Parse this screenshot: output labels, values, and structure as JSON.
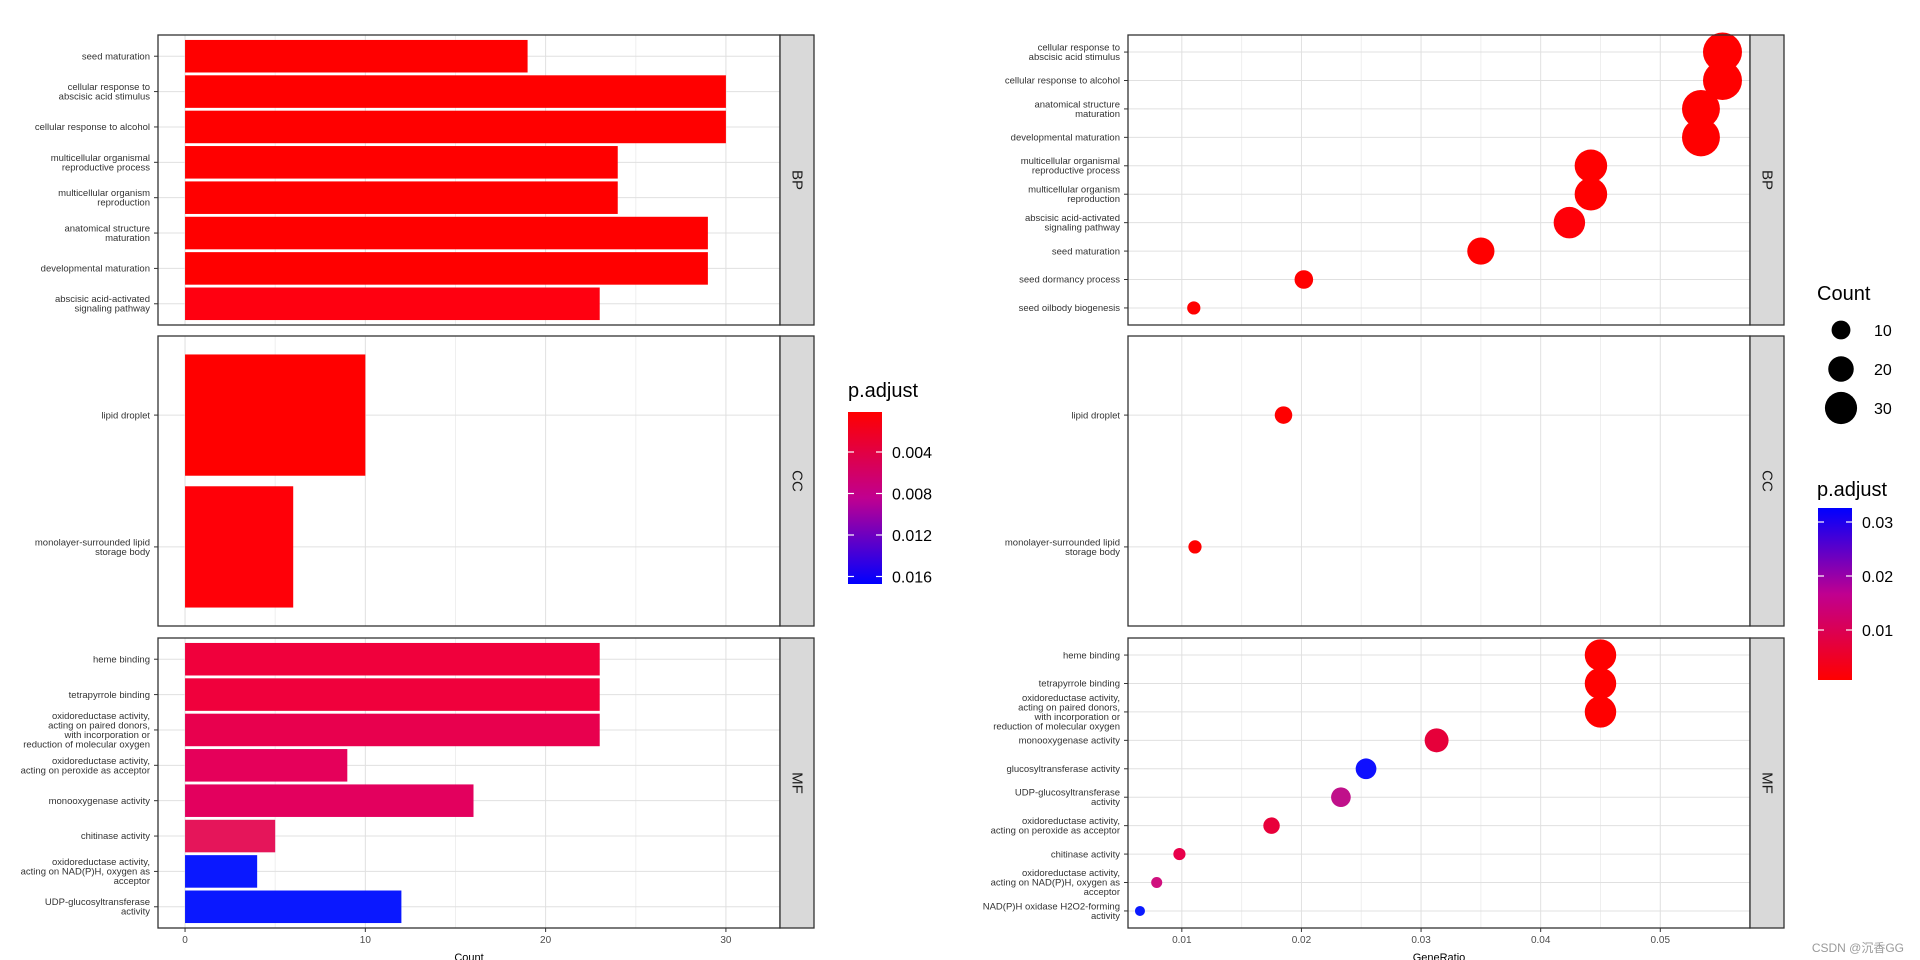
{
  "chart_data": [
    {
      "type": "bar",
      "xlabel": "Count",
      "xlim": [
        -1.5,
        33
      ],
      "xticks": [
        0,
        10,
        20,
        30
      ],
      "legend": {
        "title": "p.adjust",
        "ticks": [
          "0.004",
          "0.008",
          "0.012",
          "0.016"
        ],
        "placement": "right",
        "low_color": "#FF0000",
        "high_color": "#0000FF"
      },
      "facets": [
        {
          "name": "BP",
          "bars": [
            {
              "label": "seed maturation",
              "value": 19,
              "color": "#FF0000"
            },
            {
              "label": "cellular response to\nabscisic acid stimulus",
              "value": 30,
              "color": "#FF0000"
            },
            {
              "label": "cellular response to alcohol",
              "value": 30,
              "color": "#FF0000"
            },
            {
              "label": "multicellular organismal\nreproductive process",
              "value": 24,
              "color": "#FF0000"
            },
            {
              "label": "multicellular organism\nreproduction",
              "value": 24,
              "color": "#FF0000"
            },
            {
              "label": "anatomical structure\nmaturation",
              "value": 29,
              "color": "#FF0000"
            },
            {
              "label": "developmental maturation",
              "value": 29,
              "color": "#FF0000"
            },
            {
              "label": "abscisic acid-activated\nsignaling pathway",
              "value": 23,
              "color": "#FF0010"
            }
          ]
        },
        {
          "name": "CC",
          "bars": [
            {
              "label": "lipid droplet",
              "value": 10,
              "color": "#FF0000"
            },
            {
              "label": "monolayer-surrounded lipid\nstorage body",
              "value": 6,
              "color": "#FF0008"
            }
          ]
        },
        {
          "name": "MF",
          "bars": [
            {
              "label": "heme binding",
              "value": 23,
              "color": "#F0003C"
            },
            {
              "label": "tetrapyrrole binding",
              "value": 23,
              "color": "#F0003C"
            },
            {
              "label": "oxidoreductase activity,\nacting on paired donors,\nwith incorporation or\nreduction of molecular oxygen",
              "value": 23,
              "color": "#E8004E"
            },
            {
              "label": "oxidoreductase activity,\nacting on peroxide as acceptor",
              "value": 9,
              "color": "#E5005A"
            },
            {
              "label": "monooxygenase activity",
              "value": 16,
              "color": "#E3005E"
            },
            {
              "label": "chitinase activity",
              "value": 5,
              "color": "#E5155A"
            },
            {
              "label": "oxidoreductase activity,\nacting on NAD(P)H, oxygen as\nacceptor",
              "value": 4,
              "color": "#0A18FF"
            },
            {
              "label": "UDP-glucosyltransferase\nactivity",
              "value": 12,
              "color": "#0A18FF"
            }
          ]
        }
      ]
    },
    {
      "type": "scatter",
      "xlabel": "GeneRatio",
      "xlim": [
        0.0055,
        0.0575
      ],
      "xticks": [
        0.01,
        0.02,
        0.03,
        0.04,
        0.05
      ],
      "size_legend": {
        "title": "Count",
        "values": [
          10,
          20,
          30
        ]
      },
      "color_legend": {
        "title": "p.adjust",
        "ticks": [
          "0.03",
          "0.02",
          "0.01"
        ],
        "low_color": "#FF0000",
        "high_color": "#0000FF"
      },
      "facets": [
        {
          "name": "BP",
          "points": [
            {
              "label": "cellular response to\nabscisic acid stimulus",
              "x": 0.0552,
              "count": 30,
              "color": "#FF0000"
            },
            {
              "label": "cellular response to alcohol",
              "x": 0.0552,
              "count": 30,
              "color": "#FF0000"
            },
            {
              "label": "anatomical structure\nmaturation",
              "x": 0.0534,
              "count": 29,
              "color": "#FF0000"
            },
            {
              "label": "developmental maturation",
              "x": 0.0534,
              "count": 29,
              "color": "#FF0000"
            },
            {
              "label": "multicellular organismal\nreproductive process",
              "x": 0.0442,
              "count": 24,
              "color": "#FF0000"
            },
            {
              "label": "multicellular organism\nreproduction",
              "x": 0.0442,
              "count": 24,
              "color": "#FF0000"
            },
            {
              "label": "abscisic acid-activated\nsignaling pathway",
              "x": 0.0424,
              "count": 23,
              "color": "#FF0008"
            },
            {
              "label": "seed maturation",
              "x": 0.035,
              "count": 19,
              "color": "#FF0000"
            },
            {
              "label": "seed dormancy process",
              "x": 0.0202,
              "count": 11,
              "color": "#FF0000"
            },
            {
              "label": "seed oilbody biogenesis",
              "x": 0.011,
              "count": 6,
              "color": "#FF0000"
            }
          ]
        },
        {
          "name": "CC",
          "points": [
            {
              "label": "lipid droplet",
              "x": 0.0185,
              "count": 10,
              "color": "#FF0000"
            },
            {
              "label": "monolayer-surrounded lipid\nstorage body",
              "x": 0.0111,
              "count": 6,
              "color": "#FF0000"
            }
          ]
        },
        {
          "name": "MF",
          "points": [
            {
              "label": "heme binding",
              "x": 0.045,
              "count": 23,
              "color": "#FF0000"
            },
            {
              "label": "tetrapyrrole binding",
              "x": 0.045,
              "count": 23,
              "color": "#FF0000"
            },
            {
              "label": "oxidoreductase activity,\nacting on paired donors,\nwith incorporation or\nreduction of molecular oxygen",
              "x": 0.045,
              "count": 23,
              "color": "#FF0000"
            },
            {
              "label": "monooxygenase activity",
              "x": 0.0313,
              "count": 16,
              "color": "#E6003A"
            },
            {
              "label": "glucosyltransferase activity",
              "x": 0.0254,
              "count": 13,
              "color": "#0F10FF"
            },
            {
              "label": "UDP-glucosyltransferase\nactivity",
              "x": 0.0233,
              "count": 12,
              "color": "#C0108A"
            },
            {
              "label": "oxidoreductase activity,\nacting on peroxide as acceptor",
              "x": 0.0175,
              "count": 9,
              "color": "#E8003A"
            },
            {
              "label": "chitinase activity",
              "x": 0.0098,
              "count": 5,
              "color": "#E8004A"
            },
            {
              "label": "oxidoreductase activity,\nacting on NAD(P)H, oxygen as\nacceptor",
              "x": 0.0079,
              "count": 4,
              "color": "#D0107E"
            },
            {
              "label": "NAD(P)H oxidase H2O2-forming\nactivity",
              "x": 0.0065,
              "count": 3,
              "color": "#0A1AFF"
            }
          ]
        }
      ]
    }
  ],
  "watermark": "CSDN @沉香GG"
}
